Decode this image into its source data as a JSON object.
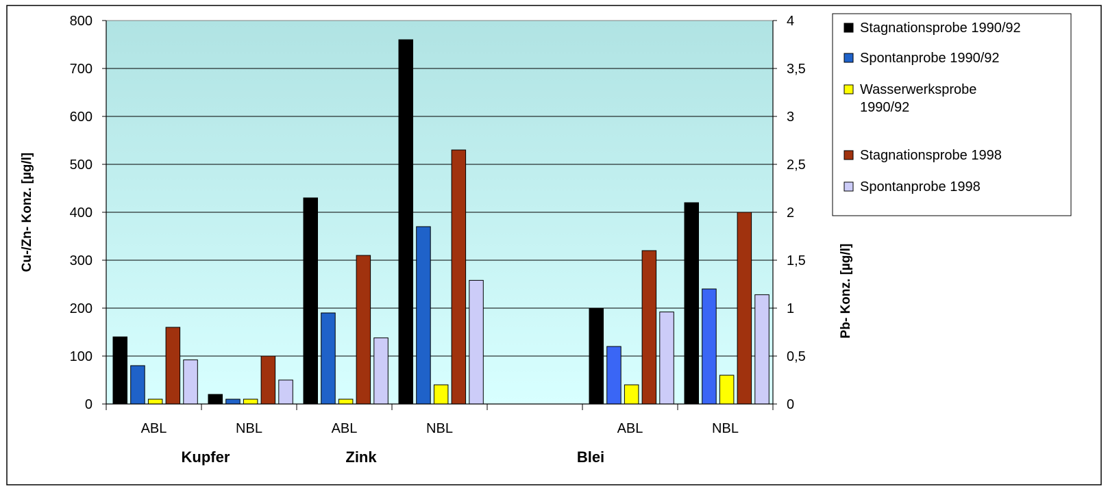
{
  "chart_data": {
    "type": "bar",
    "categories": [
      "ABL",
      "NBL",
      "ABL",
      "NBL",
      "",
      "ABL",
      "NBL"
    ],
    "groups": [
      {
        "label": "Kupfer",
        "columns": [
          0,
          1
        ]
      },
      {
        "label": "Zink",
        "columns": [
          2,
          3
        ]
      },
      {
        "label": "Blei",
        "columns": [
          5,
          6
        ]
      }
    ],
    "series": [
      {
        "name": "Stagnationsprobe 1990/92",
        "color": "#000000",
        "values": [
          140,
          20,
          430,
          760,
          null,
          1.0,
          2.1
        ]
      },
      {
        "name": "Spontanprobe 1990/92",
        "color": "#1f62c9",
        "values": [
          80,
          10,
          190,
          370,
          null,
          0.6,
          1.2
        ]
      },
      {
        "name": "Wasserwerksprobe 1990/92",
        "color": "#ffff00",
        "values": [
          10,
          10,
          10,
          40,
          null,
          0.2,
          0.3
        ]
      },
      {
        "name": "Stagnationsprobe 1998",
        "color": "#a0320e",
        "values": [
          160,
          100,
          310,
          530,
          null,
          1.6,
          2.0
        ]
      },
      {
        "name": "Spontanprobe 1998",
        "color": "#ccccf8",
        "values": [
          92,
          50,
          138,
          258,
          null,
          0.96,
          1.14
        ]
      }
    ],
    "y_left": {
      "label": "Cu-/Zn- Konz. [µg/l]",
      "ylim": [
        0,
        800
      ],
      "ticks": [
        "0",
        "100",
        "200",
        "300",
        "400",
        "500",
        "600",
        "700",
        "800"
      ],
      "applies_to_columns": [
        0,
        1,
        2,
        3
      ]
    },
    "y_right": {
      "label": "Pb- Konz. [µg/l]",
      "ylim": [
        0,
        4
      ],
      "ticks": [
        "0",
        "0,5",
        "1",
        "1,5",
        "2",
        "2,5",
        "3",
        "3,5",
        "4"
      ],
      "applies_to_columns": [
        5,
        6
      ]
    },
    "grid": true,
    "legend": "right",
    "colors": {
      "plot_bg_top": "#b0e3e3",
      "plot_bg_bottom": "#d8ffff",
      "border": "#000000"
    }
  }
}
